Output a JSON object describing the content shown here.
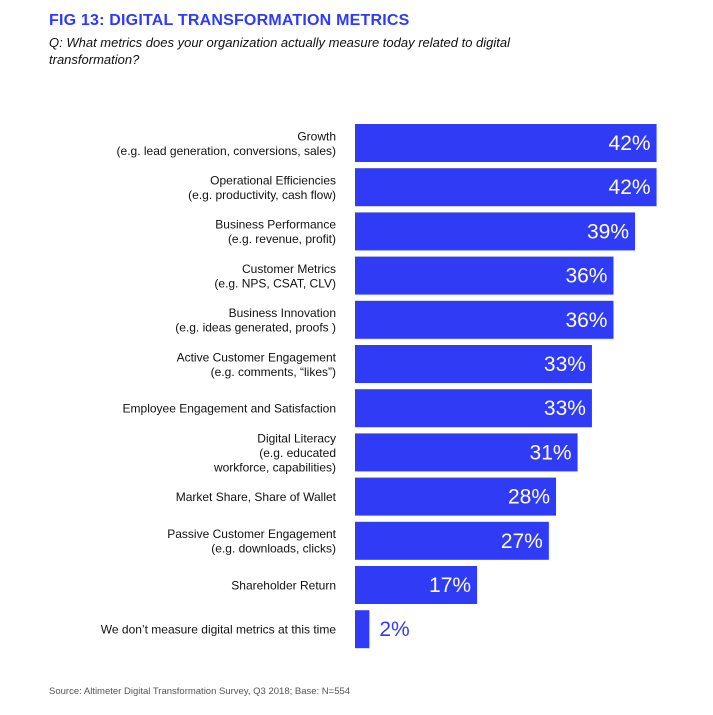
{
  "figure": {
    "title": "FIG 13: DIGITAL TRANSFORMATION METRICS",
    "question": "Q: What metrics does your organization actually measure today related to digital transformation?",
    "source": "Source: Altimeter Digital Transformation Survey, Q3 2018; Base: N=554"
  },
  "colors": {
    "bar": "#2f3bf4",
    "title": "#2f3bf4",
    "label": "#111111",
    "value_inside": "#ffffff",
    "value_outside": "#2f3bf4"
  },
  "chart_data": {
    "type": "bar",
    "orientation": "horizontal",
    "unit": "%",
    "xlim": [
      0,
      45
    ],
    "grid": false,
    "categories": [
      [
        "Growth",
        "(e.g. lead generation, conversions, sales)"
      ],
      [
        "Operational Efficiencies",
        "(e.g. productivity, cash flow)"
      ],
      [
        "Business Performance",
        "(e.g. revenue, profit)"
      ],
      [
        "Customer Metrics",
        "(e.g. NPS, CSAT, CLV)"
      ],
      [
        "Business Innovation",
        "(e.g. ideas generated, proofs )"
      ],
      [
        "Active Customer Engagement",
        "(e.g. comments, “likes”)"
      ],
      [
        "Employee Engagement and Satisfaction"
      ],
      [
        "Digital Literacy",
        "(e.g. educated",
        "workforce, capabilities)"
      ],
      [
        "Market Share, Share of Wallet"
      ],
      [
        "Passive Customer Engagement",
        "(e.g. downloads, clicks)"
      ],
      [
        "Shareholder Return"
      ],
      [
        "We don’t measure digital metrics at this time"
      ]
    ],
    "values": [
      42,
      42,
      39,
      36,
      36,
      33,
      33,
      31,
      28,
      27,
      17,
      2
    ],
    "value_labels": [
      "42%",
      "42%",
      "39%",
      "36%",
      "36%",
      "33%",
      "33%",
      "31%",
      "28%",
      "27%",
      "17%",
      "2%"
    ]
  }
}
